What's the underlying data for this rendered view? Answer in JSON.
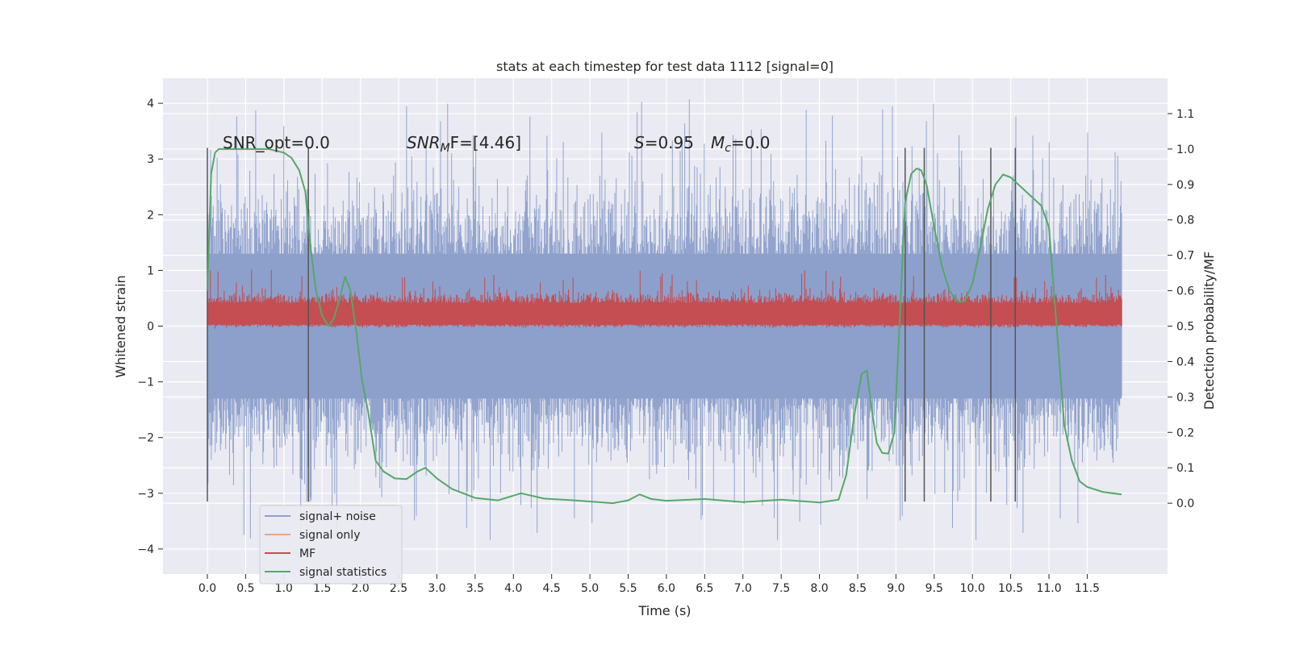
{
  "chart_data": {
    "type": "line",
    "title": "stats at each timestep for test data 1112 [signal=0]",
    "xlabel": "Time (s)",
    "ylabel_left": "Whitened strain",
    "ylabel_right": "Detection probability/MF",
    "xlim": [
      -0.58,
      12.55
    ],
    "ylim_left": [
      -4.45,
      4.45
    ],
    "ylim_right": [
      -0.2,
      1.2
    ],
    "x_ticks": [
      "0.0",
      "0.5",
      "1.0",
      "1.5",
      "2.0",
      "2.5",
      "3.0",
      "3.5",
      "4.0",
      "4.5",
      "5.0",
      "5.5",
      "6.0",
      "6.5",
      "7.0",
      "7.5",
      "8.0",
      "8.5",
      "9.0",
      "9.5",
      "10.0",
      "10.5",
      "11.0",
      "11.5"
    ],
    "y_ticks_left": [
      "4",
      "3",
      "2",
      "1",
      "0",
      "−1",
      "−2",
      "−3",
      "−4"
    ],
    "y_ticks_right": [
      "1.1",
      "1.0",
      "0.9",
      "0.8",
      "0.7",
      "0.6",
      "0.5",
      "0.4",
      "0.3",
      "0.2",
      "0.1",
      "0.0"
    ],
    "grid": true,
    "background": "#eaeaf2",
    "legend_position": "lower-left",
    "annotations": {
      "snr_opt": "SNR_opt=0.0",
      "snr_mf_name": "SNR",
      "snr_mf_sub": "M",
      "snr_mf_rest": "F=[4.46]",
      "s_name": "S",
      "s_value": "=0.95",
      "mc_name": "M",
      "mc_sub": "c",
      "mc_value": "=0.0"
    },
    "vertical_markers": [
      0.0,
      1.32,
      9.12,
      9.37,
      10.24,
      10.56
    ],
    "series": [
      {
        "name": "signal+ noise",
        "color": "#8da0cb",
        "axis": "left",
        "style": "dense-noise",
        "x_range": [
          0.0,
          11.95
        ],
        "core_band": [
          -1.3,
          1.3
        ],
        "typical_peaks": [
          -2.6,
          2.6
        ],
        "max": 4.1,
        "min": -3.85
      },
      {
        "name": "signal only",
        "color": "#e8a48c",
        "axis": "left",
        "values": []
      },
      {
        "name": "MF",
        "color": "#c44e52",
        "axis": "right",
        "style": "dense-noise",
        "x_range": [
          0.0,
          11.95
        ],
        "band": [
          0.5,
          0.6
        ],
        "max": 0.66
      },
      {
        "name": "signal statistics",
        "color": "#55a868",
        "axis": "right",
        "x": [
          0.0,
          0.05,
          0.1,
          0.15,
          0.25,
          0.5,
          0.8,
          1.0,
          1.1,
          1.2,
          1.28,
          1.35,
          1.42,
          1.5,
          1.58,
          1.65,
          1.72,
          1.8,
          1.87,
          1.95,
          2.02,
          2.1,
          2.2,
          2.3,
          2.45,
          2.6,
          2.75,
          2.85,
          3.0,
          3.2,
          3.5,
          3.8,
          4.1,
          4.4,
          4.8,
          5.3,
          5.5,
          5.65,
          5.8,
          6.0,
          6.5,
          7.0,
          7.5,
          8.0,
          8.25,
          8.35,
          8.45,
          8.55,
          8.62,
          8.68,
          8.75,
          8.82,
          8.9,
          8.98,
          9.05,
          9.12,
          9.2,
          9.27,
          9.33,
          9.4,
          9.5,
          9.6,
          9.7,
          9.8,
          9.9,
          10.0,
          10.1,
          10.2,
          10.3,
          10.4,
          10.5,
          10.6,
          10.7,
          10.8,
          10.9,
          11.0,
          11.1,
          11.2,
          11.3,
          11.4,
          11.5,
          11.7,
          11.95
        ],
        "values": [
          0.6,
          0.93,
          0.99,
          1.0,
          1.0,
          1.0,
          1.0,
          0.99,
          0.975,
          0.94,
          0.88,
          0.72,
          0.6,
          0.53,
          0.5,
          0.52,
          0.57,
          0.64,
          0.6,
          0.48,
          0.35,
          0.26,
          0.12,
          0.09,
          0.07,
          0.068,
          0.09,
          0.1,
          0.07,
          0.04,
          0.015,
          0.008,
          0.028,
          0.013,
          0.008,
          0.0,
          0.008,
          0.025,
          0.012,
          0.007,
          0.012,
          0.003,
          0.01,
          0.002,
          0.01,
          0.08,
          0.24,
          0.365,
          0.375,
          0.27,
          0.17,
          0.142,
          0.14,
          0.2,
          0.52,
          0.85,
          0.93,
          0.945,
          0.94,
          0.9,
          0.78,
          0.67,
          0.6,
          0.57,
          0.57,
          0.62,
          0.72,
          0.83,
          0.9,
          0.928,
          0.92,
          0.9,
          0.88,
          0.86,
          0.84,
          0.78,
          0.5,
          0.22,
          0.12,
          0.062,
          0.046,
          0.032,
          0.025
        ]
      }
    ]
  }
}
